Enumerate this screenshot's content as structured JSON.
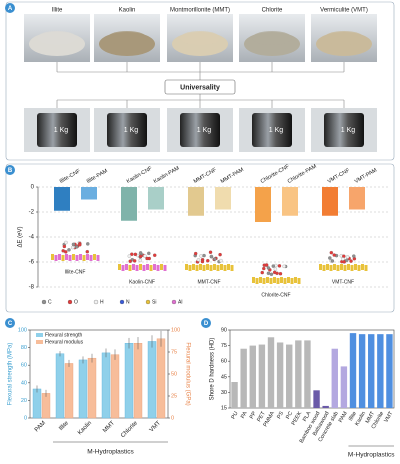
{
  "panel_labels": [
    "A",
    "B",
    "C",
    "D"
  ],
  "panel_a": {
    "minerals": [
      "Illite",
      "Kaolin",
      "Montmorillonite (MMT)",
      "Chlorite",
      "Vermiculite (VMT)"
    ],
    "center_label": "Universality",
    "weight_labels": [
      "1 Kg",
      "1 Kg",
      "1 Kg",
      "1 Kg",
      "1 Kg"
    ]
  },
  "chart_data": [
    {
      "type": "bar",
      "ylabel": "ΔE (eV)",
      "categories": [
        "Illite-CNF",
        "Illite-PAM",
        "Kaolin-CNF",
        "Kaolin-PAM",
        "MMT-CNF",
        "MMT-PAM",
        "Chlorite-CNF",
        "Chlorite-PAM",
        "VMT-CNF",
        "VMT-PAM"
      ],
      "values": [
        -1.9,
        -1.0,
        -2.7,
        -1.8,
        -2.3,
        -1.8,
        -2.8,
        -2.3,
        -2.3,
        -1.8
      ],
      "colors": [
        "#2f7fc1",
        "#6aaee0",
        "#7fb3aa",
        "#a9cfc8",
        "#e2c98f",
        "#f0dcae",
        "#f4a24a",
        "#f9c483",
        "#f27d33",
        "#f7a56b"
      ],
      "ylim": [
        -8,
        0
      ],
      "yticks": [
        0,
        -2,
        -4,
        -6,
        -8
      ],
      "structure_labels": [
        "Illite-CNF",
        "Kaolin-CNF",
        "MMT-CNF",
        "Chlorite-CNF",
        "VMT-CNF"
      ],
      "atom_legend": [
        {
          "name": "C",
          "color": "#909090"
        },
        {
          "name": "O",
          "color": "#e23b3b"
        },
        {
          "name": "H",
          "color": "#f2f2f2"
        },
        {
          "name": "N",
          "color": "#3a5bd8"
        },
        {
          "name": "Si",
          "color": "#e8c23a"
        },
        {
          "name": "Al",
          "color": "#e070d0"
        }
      ]
    },
    {
      "type": "bar",
      "ylabel": "Flexural strength (MPa)",
      "y2label": "Flexural modulus (GPa)",
      "categories": [
        "PAM",
        "Illite",
        "Kaolin",
        "MMT",
        "Chlorite",
        "VMT"
      ],
      "series": [
        {
          "name": "Flexural strength",
          "color": "#8fd0ea",
          "values": [
            33,
            73,
            66,
            74,
            85,
            87
          ],
          "errors": [
            4,
            3,
            4,
            5,
            6,
            7
          ]
        },
        {
          "name": "Flexural modulus",
          "color": "#f7bd9a",
          "values": [
            28,
            62,
            68,
            72,
            85,
            90
          ],
          "errors": [
            4,
            4,
            5,
            6,
            7,
            9
          ],
          "axis": "y2"
        }
      ],
      "ylim": [
        0,
        100
      ],
      "yticks": [
        0,
        20,
        40,
        60,
        80,
        100
      ],
      "y2lim": [
        0,
        100
      ],
      "y2ticks": [
        0,
        25,
        50,
        75,
        100
      ],
      "group_label": "M-Hydroplastics"
    },
    {
      "type": "bar",
      "ylabel": "Shore D hardness (HD)",
      "categories": [
        "PU",
        "PA",
        "PP",
        "PET",
        "PMMA",
        "PS",
        "PC",
        "PEEK",
        "PLA",
        "Bamboo wood",
        "Balsawood",
        "Concrete slab",
        "PAM",
        "Illite",
        "Kaolin",
        "MMT",
        "Chlorite",
        "VMT"
      ],
      "values": [
        40,
        72,
        75,
        76,
        83,
        78,
        76,
        80,
        80,
        32,
        17,
        72,
        55,
        87,
        86,
        86,
        86,
        86
      ],
      "colors": [
        "#b8b8b8",
        "#b8b8b8",
        "#b8b8b8",
        "#b8b8b8",
        "#b8b8b8",
        "#b8b8b8",
        "#b8b8b8",
        "#b8b8b8",
        "#b8b8b8",
        "#6a5aa8",
        "#6a5aa8",
        "#b3a8e0",
        "#b3a8e0",
        "#4f8fe0",
        "#4f8fe0",
        "#4f8fe0",
        "#4f8fe0",
        "#4f8fe0"
      ],
      "ylim": [
        15,
        90
      ],
      "yticks": [
        15,
        30,
        45,
        60,
        75,
        90
      ],
      "group_label": "M-Hydroplastics"
    }
  ]
}
